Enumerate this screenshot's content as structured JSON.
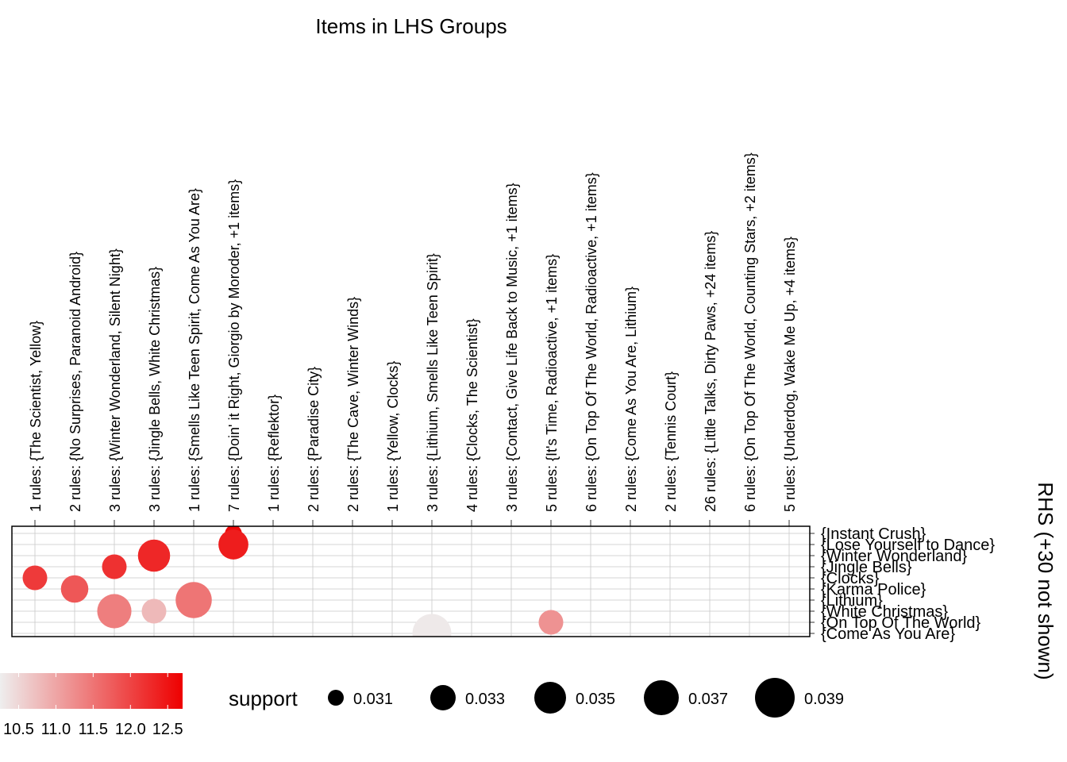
{
  "chart_data": {
    "type": "scatter",
    "title": "Items in LHS Groups",
    "x_categories": [
      "1 rules: {The Scientist, Yellow}",
      "2 rules: {No Surprises, Paranoid Android}",
      "3 rules: {Winter Wonderland, Silent Night}",
      "3 rules: {Jingle Bells, White Christmas}",
      "1 rules: {Smells Like Teen Spirit, Come As You Are}",
      "7 rules: {Doin' it Right, Giorgio by Moroder, +1 items}",
      "1 rules: {Reflektor}",
      "2 rules: {Paradise City}",
      "2 rules: {The Cave, Winter Winds}",
      "1 rules: {Yellow, Clocks}",
      "3 rules: {Lithium, Smells Like Teen Spirit}",
      "4 rules: {Clocks, The Scientist}",
      "3 rules: {Contact, Give Life Back to Music, +1 items}",
      "5 rules: {It's Time, Radioactive, +1 items}",
      "6 rules: {On Top Of The World, Radioactive, +1 items}",
      "2 rules: {Come As You Are, Lithium}",
      "2 rules: {Tennis Court}",
      "26 rules: {Little Talks, Dirty Paws, +24 items}",
      "6 rules: {On Top Of The World, Counting Stars, +2 items}",
      "5 rules: {Underdog, Wake Me Up, +4 items}"
    ],
    "y_categories": [
      "{Instant Crush}",
      "{Lose Yourself to Dance}",
      "{Winter Wonderland}",
      "{Jingle Bells}",
      "{Clocks}",
      "{Karma Police}",
      "{Lithium}",
      "{White Christmas}",
      "{On Top Of The World}",
      "{Come As You Are}"
    ],
    "points": [
      {
        "x": "7 rules: {Doin' it Right, Giorgio by Moroder, +1 items}",
        "y": "{Instant Crush}",
        "support": 0.0305,
        "lift": 12.6
      },
      {
        "x": "7 rules: {Doin' it Right, Giorgio by Moroder, +1 items}",
        "y": "{Lose Yourself to Dance}",
        "support": 0.0345,
        "lift": 12.4
      },
      {
        "x": "3 rules: {Jingle Bells, White Christmas}",
        "y": "{Winter Wonderland}",
        "support": 0.0355,
        "lift": 12.3
      },
      {
        "x": "3 rules: {Winter Wonderland, Silent Night}",
        "y": "{Jingle Bells}",
        "support": 0.0325,
        "lift": 12.2
      },
      {
        "x": "1 rules: {The Scientist, Yellow}",
        "y": "{Clocks}",
        "support": 0.0325,
        "lift": 12.1
      },
      {
        "x": "2 rules: {No Surprises, Paranoid Android}",
        "y": "{Karma Police}",
        "support": 0.0335,
        "lift": 11.8
      },
      {
        "x": "1 rules: {Smells Like Teen Spirit, Come As You Are}",
        "y": "{Lithium}",
        "support": 0.0375,
        "lift": 11.5
      },
      {
        "x": "3 rules: {Winter Wonderland, Silent Night}",
        "y": "{White Christmas}",
        "support": 0.0365,
        "lift": 11.4
      },
      {
        "x": "3 rules: {Jingle Bells, White Christmas}",
        "y": "{White Christmas}",
        "support": 0.0325,
        "lift": 10.8
      },
      {
        "x": "5 rules: {It's Time, Radioactive, +1 items}",
        "y": "{On Top Of The World}",
        "support": 0.0325,
        "lift": 11.2
      },
      {
        "x": "3 rules: {Lithium, Smells Like Teen Spirit}",
        "y": "{Come As You Are}",
        "support": 0.039,
        "lift": 10.3
      }
    ],
    "right_axis_title": "RHS (+30 not shown)",
    "color_legend": {
      "labels": [
        "10.5",
        "11.0",
        "11.5",
        "12.0",
        "12.5"
      ],
      "values": [
        10.5,
        11.0,
        11.5,
        12.0,
        12.5
      ],
      "range": [
        10.25,
        12.7
      ],
      "low_color": "#eeeeee",
      "high_color": "#ee0000"
    },
    "size_legend": {
      "title": "support",
      "labels": [
        "0.031",
        "0.033",
        "0.035",
        "0.037",
        "0.039"
      ],
      "values": [
        0.031,
        0.033,
        0.035,
        0.037,
        0.039
      ]
    },
    "grid": true
  }
}
